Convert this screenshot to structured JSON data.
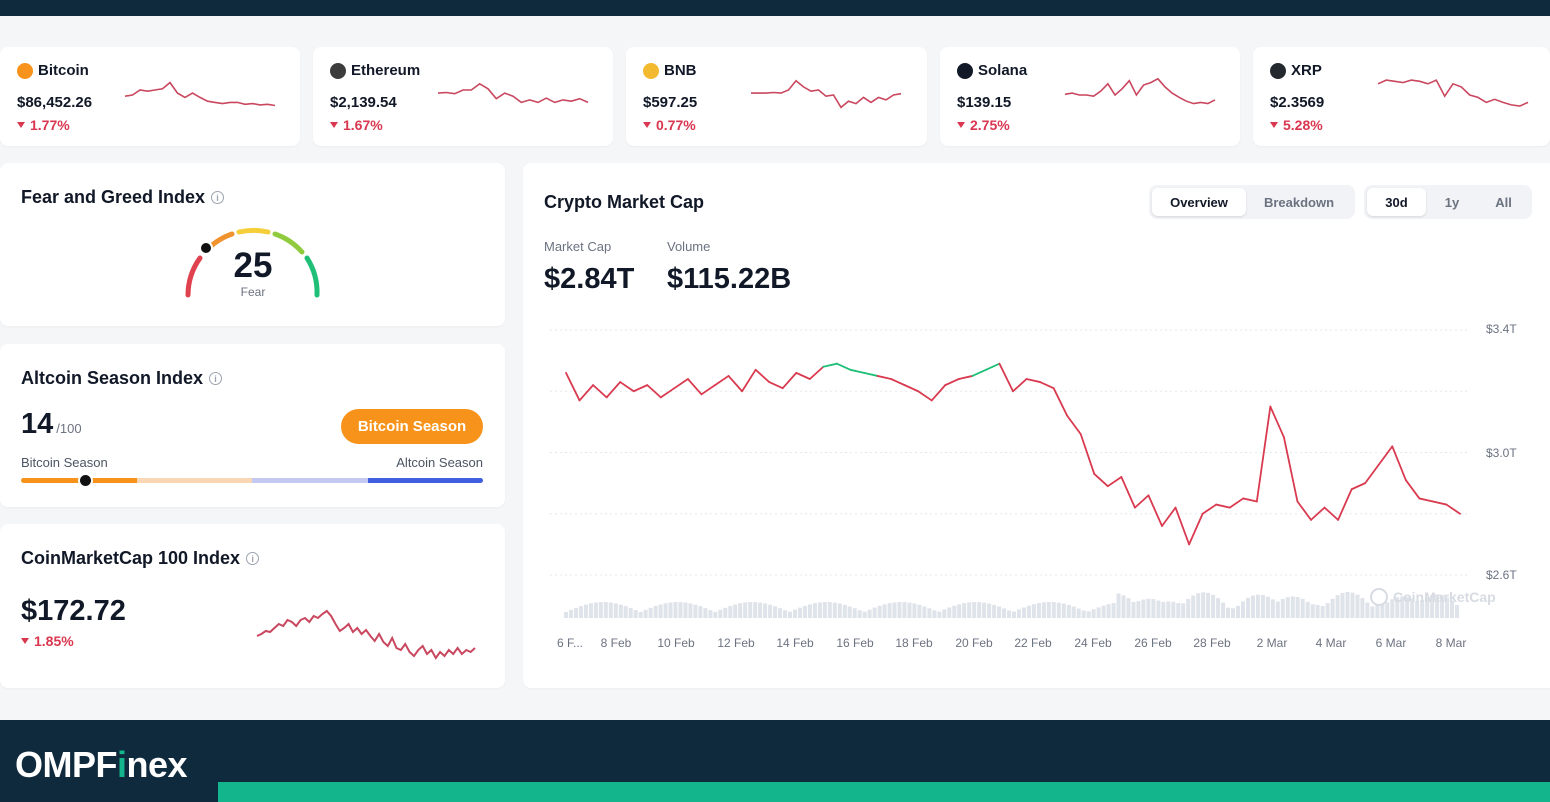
{
  "tickers": [
    {
      "name": "Bitcoin",
      "price": "$86,452.26",
      "change": "1.77%",
      "icon": "bitcoin-icon",
      "color": "#f7931a",
      "spark": [
        60,
        58,
        50,
        52,
        50,
        48,
        38,
        55,
        62,
        55,
        62,
        68,
        70,
        72,
        70,
        70,
        73,
        72,
        74,
        73,
        75
      ]
    },
    {
      "name": "Ethereum",
      "price": "$2,139.54",
      "change": "1.67%",
      "icon": "ethereum-icon",
      "color": "#3c3c3d",
      "spark": [
        55,
        54,
        56,
        50,
        50,
        40,
        48,
        64,
        55,
        60,
        70,
        66,
        70,
        63,
        70,
        66,
        68,
        64,
        70
      ]
    },
    {
      "name": "BNB",
      "price": "$597.25",
      "change": "0.77%",
      "icon": "bnb-icon",
      "color": "#f3ba2f",
      "spark": [
        55,
        55,
        55,
        54,
        55,
        50,
        35,
        45,
        52,
        50,
        60,
        58,
        78,
        68,
        72,
        62,
        70,
        62,
        66,
        58,
        56
      ]
    },
    {
      "name": "Solana",
      "price": "$139.15",
      "change": "2.75%",
      "icon": "solana-icon",
      "color": "#111827",
      "spark": [
        57,
        55,
        58,
        58,
        60,
        52,
        40,
        58,
        48,
        35,
        58,
        42,
        38,
        32,
        45,
        55,
        62,
        68,
        72,
        70,
        72,
        66
      ]
    },
    {
      "name": "XRP",
      "price": "$2.3569",
      "change": "5.28%",
      "icon": "xrp-icon",
      "color": "#23292f",
      "spark": [
        40,
        34,
        36,
        38,
        34,
        36,
        40,
        34,
        60,
        40,
        45,
        58,
        62,
        70,
        65,
        70,
        74,
        76,
        70
      ]
    }
  ],
  "fear_greed": {
    "title": "Fear and Greed Index",
    "value": "25",
    "label": "Fear",
    "level": 0.25
  },
  "altcoin": {
    "title": "Altcoin Season Index",
    "value": "14",
    "out_of": "/100",
    "badge": "Bitcoin Season",
    "left_label": "Bitcoin Season",
    "right_label": "Altcoin Season",
    "level": 0.14
  },
  "cmc100": {
    "title": "CoinMarketCap 100 Index",
    "price": "$172.72",
    "change": "1.85%",
    "spark": [
      60,
      58,
      55,
      56,
      52,
      48,
      50,
      44,
      46,
      50,
      44,
      42,
      46,
      40,
      42,
      38,
      35,
      40,
      48,
      55,
      52,
      48,
      56,
      52,
      58,
      54,
      60,
      65,
      58,
      66,
      70,
      62,
      72,
      74,
      68,
      76,
      80,
      74,
      70,
      78,
      74,
      82,
      76,
      80,
      74,
      78,
      72,
      78,
      74,
      76,
      72
    ]
  },
  "market": {
    "title": "Crypto Market Cap",
    "tabs": [
      "Overview",
      "Breakdown"
    ],
    "active_tab": "Overview",
    "ranges": [
      "30d",
      "1y",
      "All"
    ],
    "active_range": "30d",
    "market_cap_label": "Market Cap",
    "market_cap": "$2.84T",
    "volume_label": "Volume",
    "volume": "$115.22B",
    "watermark": "CoinMarketCap"
  },
  "chart_data": {
    "type": "line",
    "title": "Crypto Market Cap",
    "x_labels": [
      "6 F...",
      "8 Feb",
      "10 Feb",
      "12 Feb",
      "14 Feb",
      "16 Feb",
      "18 Feb",
      "20 Feb",
      "22 Feb",
      "24 Feb",
      "26 Feb",
      "28 Feb",
      "2 Mar",
      "4 Mar",
      "6 Mar",
      "8 Mar"
    ],
    "y_ticks": [
      "$3.4T",
      "$3.0T",
      "$2.6T"
    ],
    "ylim": [
      2.6,
      3.4
    ],
    "grid": true,
    "series": [
      {
        "values": [
          3.26,
          3.17,
          3.22,
          3.18,
          3.23,
          3.2,
          3.22,
          3.18,
          3.21,
          3.24,
          3.19,
          3.22,
          3.25,
          3.2,
          3.27,
          3.23,
          3.21,
          3.26,
          3.24,
          3.28,
          3.29,
          3.27,
          3.26,
          3.25,
          3.24,
          3.22,
          3.2,
          3.17,
          3.22,
          3.24,
          3.25,
          3.27,
          3.29,
          3.2,
          3.24,
          3.23,
          3.21,
          3.12,
          3.06,
          2.93,
          2.89,
          2.92,
          2.82,
          2.86,
          2.76,
          2.82,
          2.7,
          2.8,
          2.83,
          2.82,
          2.85,
          2.84,
          3.15,
          3.05,
          2.84,
          2.78,
          2.82,
          2.78,
          2.88,
          2.9,
          2.96,
          3.02,
          2.91,
          2.85,
          2.84,
          2.83,
          2.8
        ]
      }
    ]
  }
}
